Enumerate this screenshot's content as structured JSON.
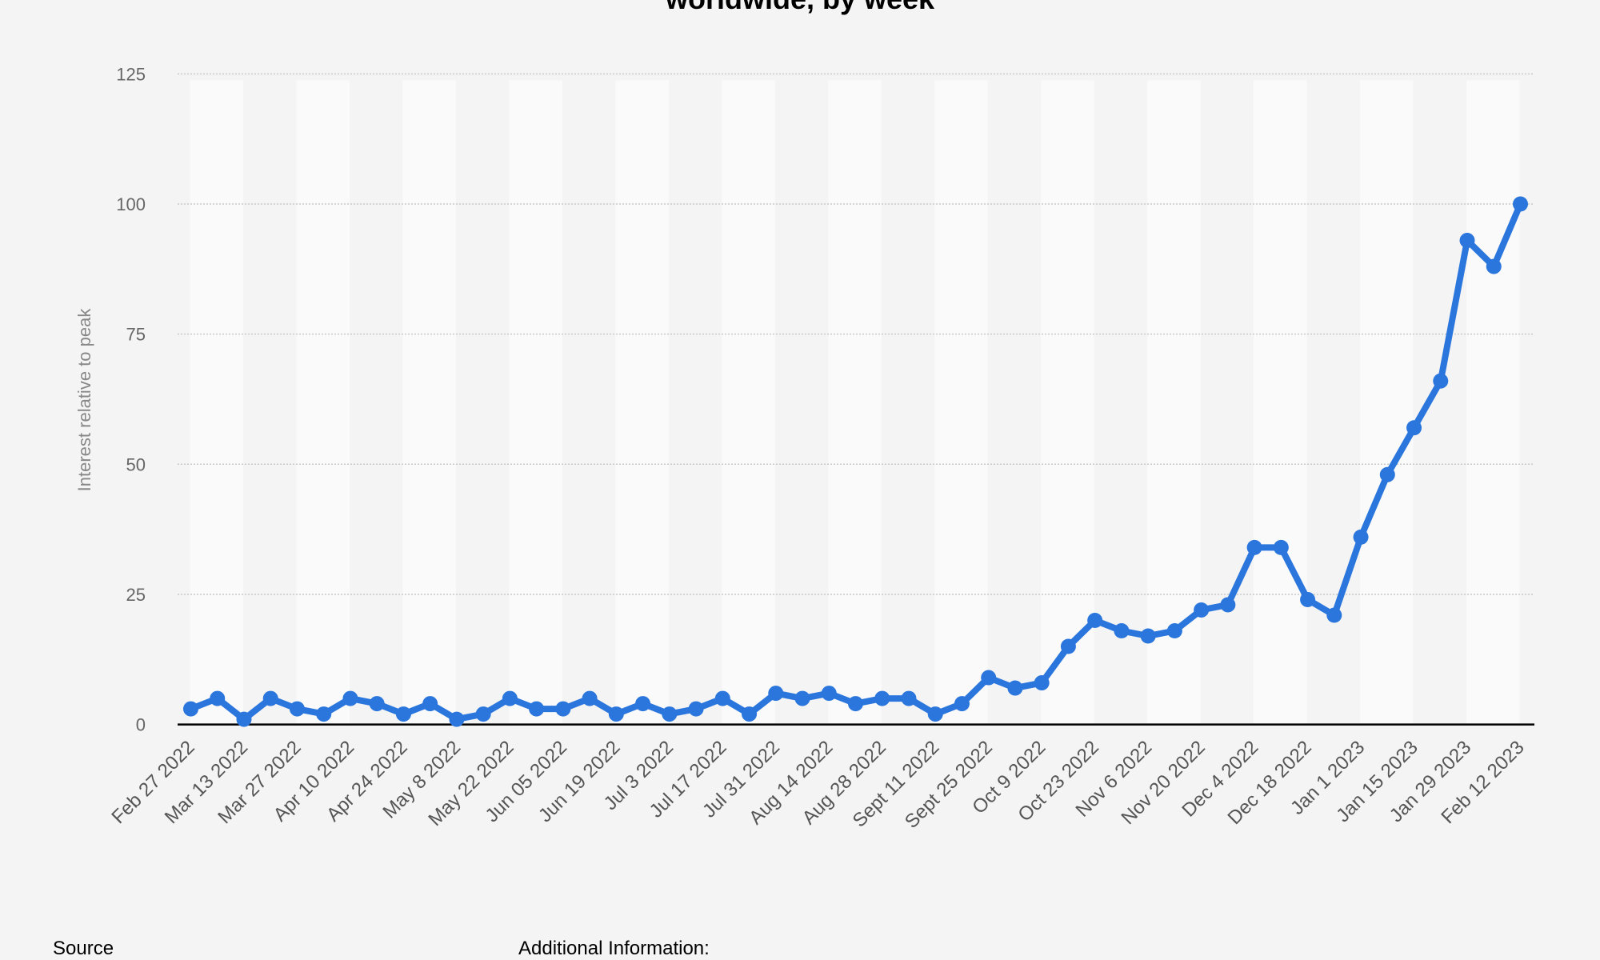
{
  "chart_data": {
    "type": "line",
    "title": "worldwide, by week",
    "xlabel": "",
    "ylabel": "Interest relative to peak",
    "ylim": [
      0,
      125
    ],
    "yticks": [
      0,
      25,
      50,
      75,
      100,
      125
    ],
    "grid": true,
    "line_color": "#2a76dd",
    "x_tick_labels": [
      "Feb 27 2022",
      "Mar 13 2022",
      "Mar 27 2022",
      "Apr 10 2022",
      "Apr 24 2022",
      "May 8 2022",
      "May 22 2022",
      "Jun 05 2022",
      "Jun 19 2022",
      "Jul 3 2022",
      "Jul 17 2022",
      "Jul 31 2022",
      "Aug 14 2022",
      "Aug 28 2022",
      "Sept 11 2022",
      "Sept 25 2022",
      "Oct 9 2022",
      "Oct 23 2022",
      "Nov 6 2022",
      "Nov 20 2022",
      "Dec 4 2022",
      "Dec 18 2022",
      "Jan 1 2023",
      "Jan 15 2023",
      "Jan 29 2023",
      "Feb 12 2023"
    ],
    "series": [
      {
        "values": [
          3,
          5,
          1,
          5,
          3,
          2,
          5,
          4,
          2,
          4,
          1,
          2,
          5,
          3,
          3,
          5,
          2,
          4,
          2,
          3,
          5,
          2,
          6,
          5,
          6,
          4,
          5,
          5,
          2,
          4,
          9,
          7,
          8,
          15,
          20,
          18,
          17,
          18,
          22,
          23,
          34,
          34,
          24,
          21,
          36,
          48,
          57,
          66,
          93,
          88,
          100
        ]
      }
    ]
  },
  "footer": {
    "source": "Source",
    "additional": "Additional Information:"
  }
}
